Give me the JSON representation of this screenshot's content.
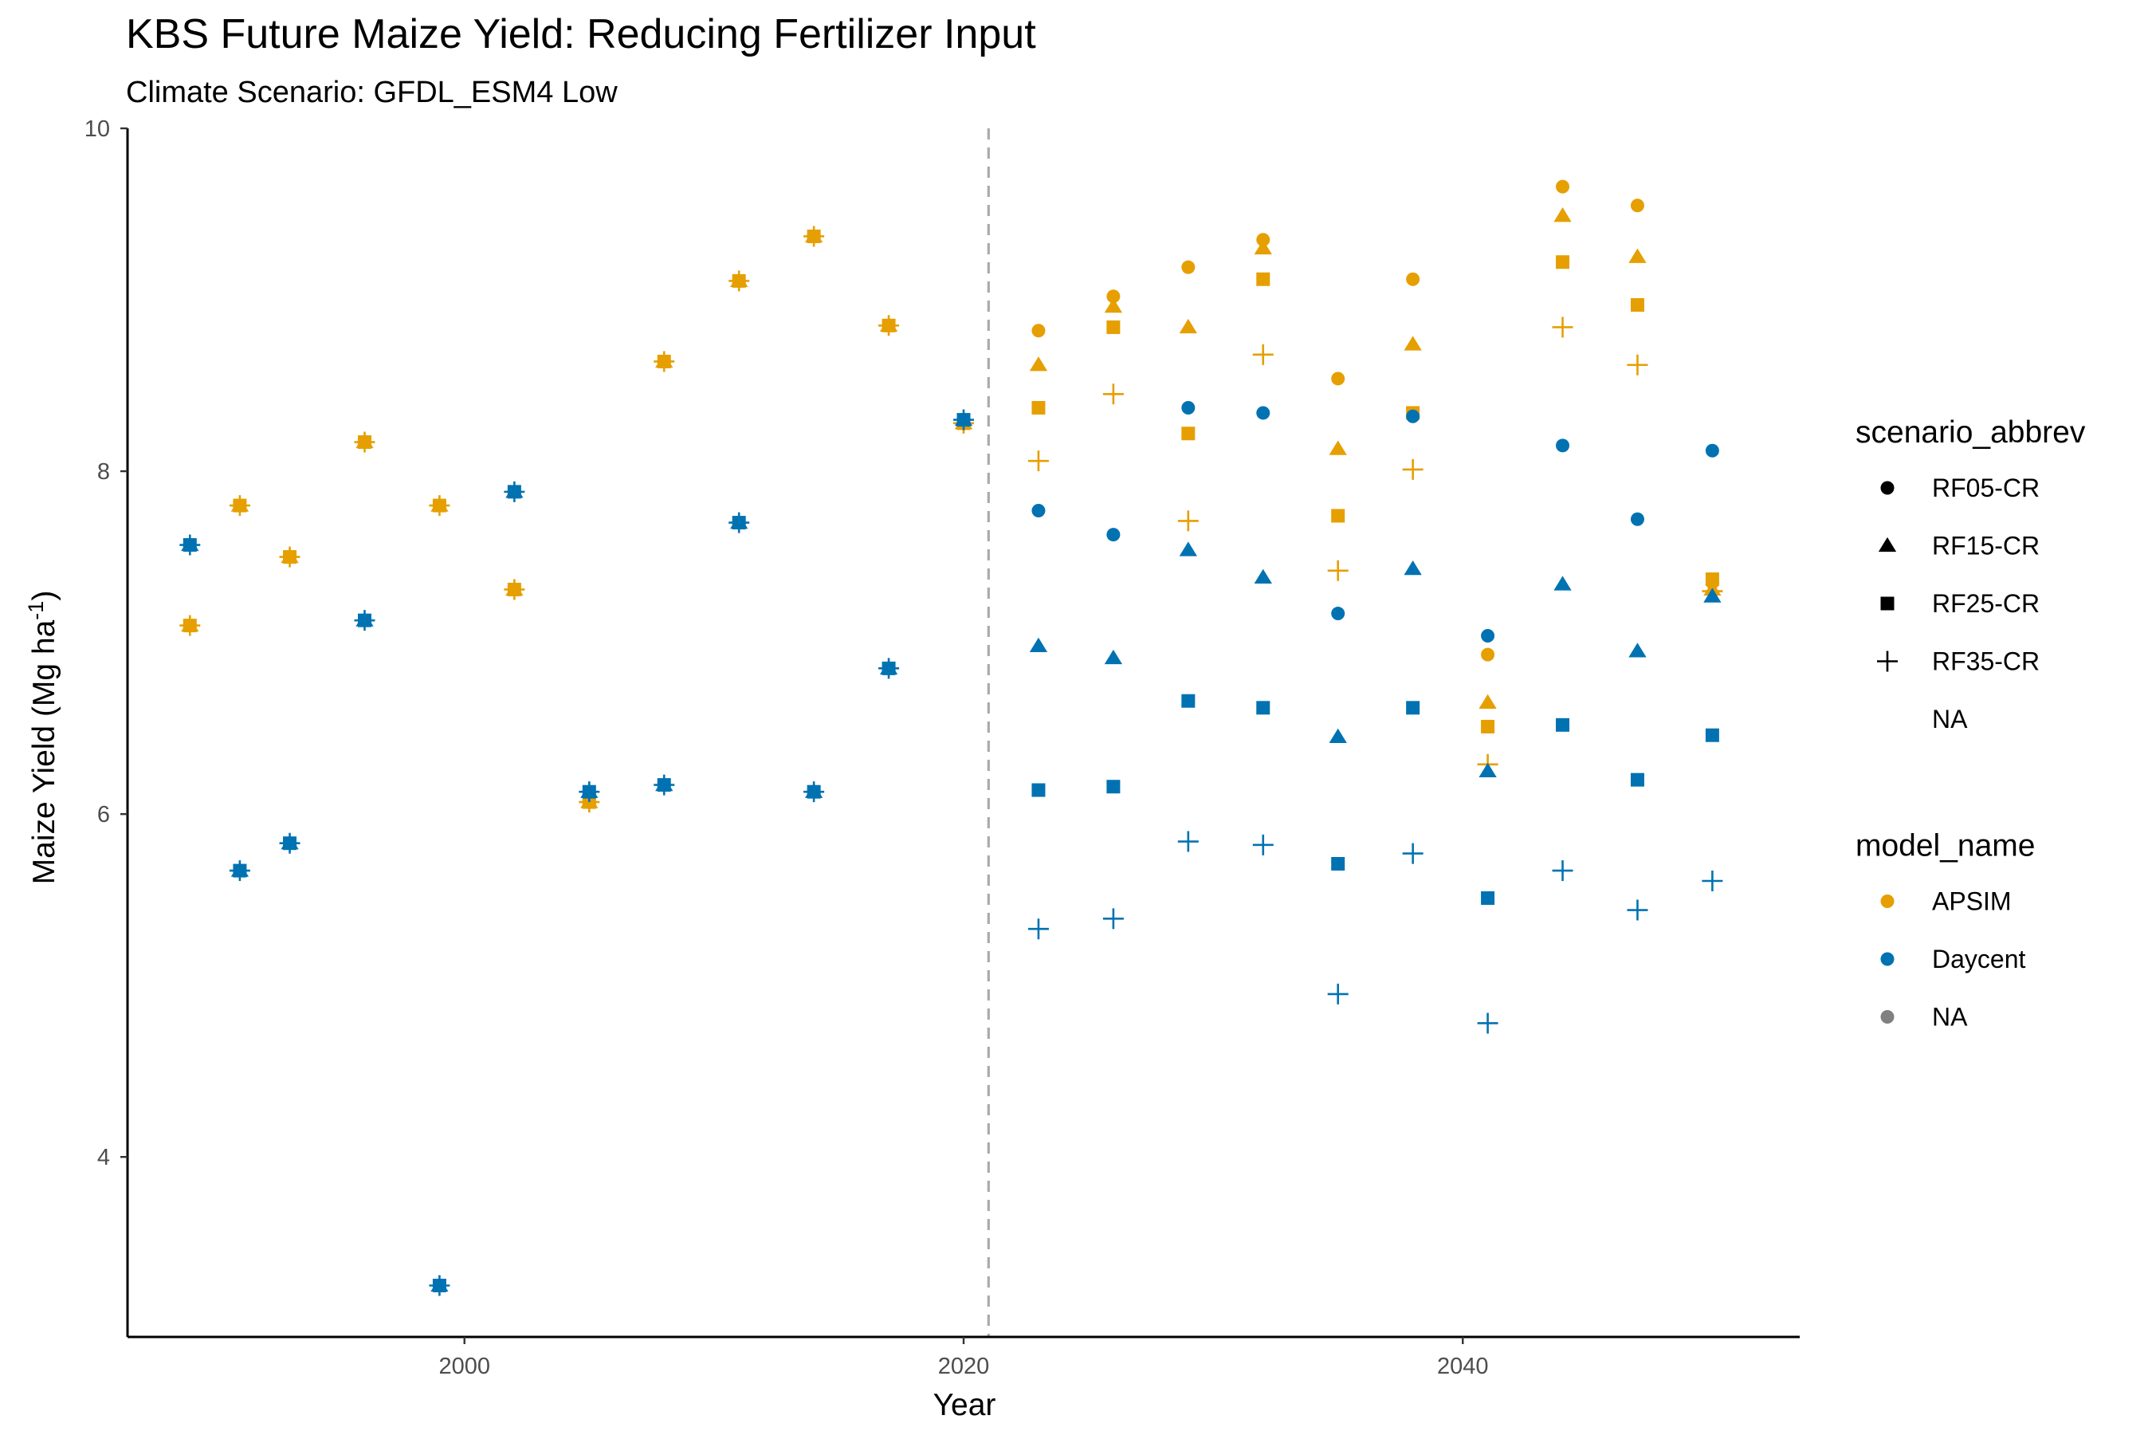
{
  "chart_data": {
    "type": "scatter",
    "title": "KBS Future Maize Yield: Reducing Fertilizer Input",
    "subtitle": "Climate Scenario: GFDL_ESM4 Low",
    "xlabel": "Year",
    "ylabel": "Maize Yield (Mg ha",
    "ylabel_superscript": "-1",
    "ylabel_close": ")",
    "xlim": [
      1986.5,
      2053.5
    ],
    "ylim": [
      2.95,
      10.0
    ],
    "x_ticks": [
      2000,
      2020,
      2040
    ],
    "y_ticks": [
      4,
      6,
      8,
      10
    ],
    "grid": false,
    "reference_line": {
      "x": 2021,
      "style": "dashed",
      "color": "#aaaaaa"
    },
    "legend_placement": "right",
    "colors": {
      "APSIM": "#E69F00",
      "Daycent": "#0072B2",
      "NA": "#808080"
    },
    "legends": [
      {
        "title": "scenario_abbrev",
        "kind": "shape",
        "entries": [
          {
            "label": "RF05-CR",
            "shape": "circle"
          },
          {
            "label": "RF15-CR",
            "shape": "triangle"
          },
          {
            "label": "RF25-CR",
            "shape": "square"
          },
          {
            "label": "RF35-CR",
            "shape": "plus"
          },
          {
            "label": "NA",
            "shape": "none"
          }
        ]
      },
      {
        "title": "model_name",
        "kind": "color",
        "entries": [
          {
            "label": "APSIM",
            "color": "#E69F00"
          },
          {
            "label": "Daycent",
            "color": "#0072B2"
          },
          {
            "label": "NA",
            "color": "#808080"
          }
        ]
      }
    ],
    "historical_note": "1989-2020 points: all four scenarios overlap at the same value",
    "series": [
      {
        "model": "APSIM",
        "scenario": "RF05-CR",
        "shape": "circle",
        "points": [
          [
            1989,
            7.1
          ],
          [
            1991,
            7.8
          ],
          [
            1993,
            7.5
          ],
          [
            1996,
            8.17
          ],
          [
            1999,
            7.8
          ],
          [
            2002,
            7.31
          ],
          [
            2005,
            6.07
          ],
          [
            2008,
            8.64
          ],
          [
            2011,
            9.11
          ],
          [
            2014,
            9.37
          ],
          [
            2017,
            8.85
          ],
          [
            2020,
            8.28
          ],
          [
            2023,
            8.82
          ],
          [
            2026,
            9.02
          ],
          [
            2029,
            9.19
          ],
          [
            2032,
            9.35
          ],
          [
            2035,
            8.54
          ],
          [
            2038,
            9.12
          ],
          [
            2041,
            6.93
          ],
          [
            2044,
            9.66
          ],
          [
            2047,
            9.55
          ],
          [
            2050,
            7.35
          ]
        ]
      },
      {
        "model": "APSIM",
        "scenario": "RF15-CR",
        "shape": "triangle",
        "points": [
          [
            1989,
            7.1
          ],
          [
            1991,
            7.8
          ],
          [
            1993,
            7.5
          ],
          [
            1996,
            8.17
          ],
          [
            1999,
            7.8
          ],
          [
            2002,
            7.31
          ],
          [
            2005,
            6.07
          ],
          [
            2008,
            8.64
          ],
          [
            2011,
            9.11
          ],
          [
            2014,
            9.37
          ],
          [
            2017,
            8.85
          ],
          [
            2020,
            8.28
          ],
          [
            2023,
            8.62
          ],
          [
            2026,
            8.96
          ],
          [
            2029,
            8.84
          ],
          [
            2032,
            9.3
          ],
          [
            2035,
            8.13
          ],
          [
            2038,
            8.74
          ],
          [
            2041,
            6.65
          ],
          [
            2044,
            9.49
          ],
          [
            2047,
            9.25
          ],
          [
            2050,
            7.31
          ]
        ]
      },
      {
        "model": "APSIM",
        "scenario": "RF25-CR",
        "shape": "square",
        "points": [
          [
            1989,
            7.1
          ],
          [
            1991,
            7.8
          ],
          [
            1993,
            7.5
          ],
          [
            1996,
            8.17
          ],
          [
            1999,
            7.8
          ],
          [
            2002,
            7.31
          ],
          [
            2005,
            6.07
          ],
          [
            2008,
            8.64
          ],
          [
            2011,
            9.11
          ],
          [
            2014,
            9.37
          ],
          [
            2017,
            8.85
          ],
          [
            2020,
            8.28
          ],
          [
            2023,
            8.37
          ],
          [
            2026,
            8.84
          ],
          [
            2029,
            8.22
          ],
          [
            2032,
            9.12
          ],
          [
            2035,
            7.74
          ],
          [
            2038,
            8.34
          ],
          [
            2041,
            6.51
          ],
          [
            2044,
            9.22
          ],
          [
            2047,
            8.97
          ],
          [
            2050,
            7.37
          ]
        ]
      },
      {
        "model": "APSIM",
        "scenario": "RF35-CR",
        "shape": "plus",
        "points": [
          [
            1989,
            7.1
          ],
          [
            1991,
            7.8
          ],
          [
            1993,
            7.5
          ],
          [
            1996,
            8.17
          ],
          [
            1999,
            7.8
          ],
          [
            2002,
            7.31
          ],
          [
            2005,
            6.07
          ],
          [
            2008,
            8.64
          ],
          [
            2011,
            9.11
          ],
          [
            2014,
            9.37
          ],
          [
            2017,
            8.85
          ],
          [
            2020,
            8.28
          ],
          [
            2023,
            8.06
          ],
          [
            2026,
            8.45
          ],
          [
            2029,
            7.71
          ],
          [
            2032,
            8.68
          ],
          [
            2035,
            7.42
          ],
          [
            2038,
            8.01
          ],
          [
            2041,
            6.29
          ],
          [
            2044,
            8.84
          ],
          [
            2047,
            8.62
          ],
          [
            2050,
            7.3
          ]
        ]
      },
      {
        "model": "Daycent",
        "scenario": "RF05-CR",
        "shape": "circle",
        "points": [
          [
            1989,
            7.57
          ],
          [
            1991,
            5.67
          ],
          [
            1993,
            5.83
          ],
          [
            1996,
            7.13
          ],
          [
            1999,
            3.25
          ],
          [
            2002,
            7.88
          ],
          [
            2005,
            6.13
          ],
          [
            2008,
            6.17
          ],
          [
            2011,
            7.7
          ],
          [
            2014,
            6.13
          ],
          [
            2017,
            6.85
          ],
          [
            2020,
            8.3
          ],
          [
            2023,
            7.77
          ],
          [
            2026,
            7.63
          ],
          [
            2029,
            8.37
          ],
          [
            2032,
            8.34
          ],
          [
            2035,
            7.17
          ],
          [
            2038,
            8.32
          ],
          [
            2041,
            7.04
          ],
          [
            2044,
            8.15
          ],
          [
            2047,
            7.72
          ],
          [
            2050,
            8.12
          ]
        ]
      },
      {
        "model": "Daycent",
        "scenario": "RF15-CR",
        "shape": "triangle",
        "points": [
          [
            1989,
            7.57
          ],
          [
            1991,
            5.67
          ],
          [
            1993,
            5.83
          ],
          [
            1996,
            7.13
          ],
          [
            1999,
            3.25
          ],
          [
            2002,
            7.88
          ],
          [
            2005,
            6.13
          ],
          [
            2008,
            6.17
          ],
          [
            2011,
            7.7
          ],
          [
            2014,
            6.13
          ],
          [
            2017,
            6.85
          ],
          [
            2020,
            8.3
          ],
          [
            2023,
            6.98
          ],
          [
            2026,
            6.91
          ],
          [
            2029,
            7.54
          ],
          [
            2032,
            7.38
          ],
          [
            2035,
            6.45
          ],
          [
            2038,
            7.43
          ],
          [
            2041,
            6.25
          ],
          [
            2044,
            7.34
          ],
          [
            2047,
            6.95
          ],
          [
            2050,
            7.27
          ]
        ]
      },
      {
        "model": "Daycent",
        "scenario": "RF25-CR",
        "shape": "square",
        "points": [
          [
            1989,
            7.57
          ],
          [
            1991,
            5.67
          ],
          [
            1993,
            5.83
          ],
          [
            1996,
            7.13
          ],
          [
            1999,
            3.25
          ],
          [
            2002,
            7.88
          ],
          [
            2005,
            6.13
          ],
          [
            2008,
            6.17
          ],
          [
            2011,
            7.7
          ],
          [
            2014,
            6.13
          ],
          [
            2017,
            6.85
          ],
          [
            2020,
            8.3
          ],
          [
            2023,
            6.14
          ],
          [
            2026,
            6.16
          ],
          [
            2029,
            6.66
          ],
          [
            2032,
            6.62
          ],
          [
            2035,
            5.71
          ],
          [
            2038,
            6.62
          ],
          [
            2041,
            5.51
          ],
          [
            2044,
            6.52
          ],
          [
            2047,
            6.2
          ],
          [
            2050,
            6.46
          ]
        ]
      },
      {
        "model": "Daycent",
        "scenario": "RF35-CR",
        "shape": "plus",
        "points": [
          [
            1989,
            7.57
          ],
          [
            1991,
            5.67
          ],
          [
            1993,
            5.83
          ],
          [
            1996,
            7.13
          ],
          [
            1999,
            3.25
          ],
          [
            2002,
            7.88
          ],
          [
            2005,
            6.13
          ],
          [
            2008,
            6.17
          ],
          [
            2011,
            7.7
          ],
          [
            2014,
            6.13
          ],
          [
            2017,
            6.85
          ],
          [
            2020,
            8.3
          ],
          [
            2023,
            5.33
          ],
          [
            2026,
            5.39
          ],
          [
            2029,
            5.84
          ],
          [
            2032,
            5.82
          ],
          [
            2035,
            4.95
          ],
          [
            2038,
            5.77
          ],
          [
            2041,
            4.78
          ],
          [
            2044,
            5.67
          ],
          [
            2047,
            5.44
          ],
          [
            2050,
            5.61
          ]
        ]
      }
    ]
  }
}
